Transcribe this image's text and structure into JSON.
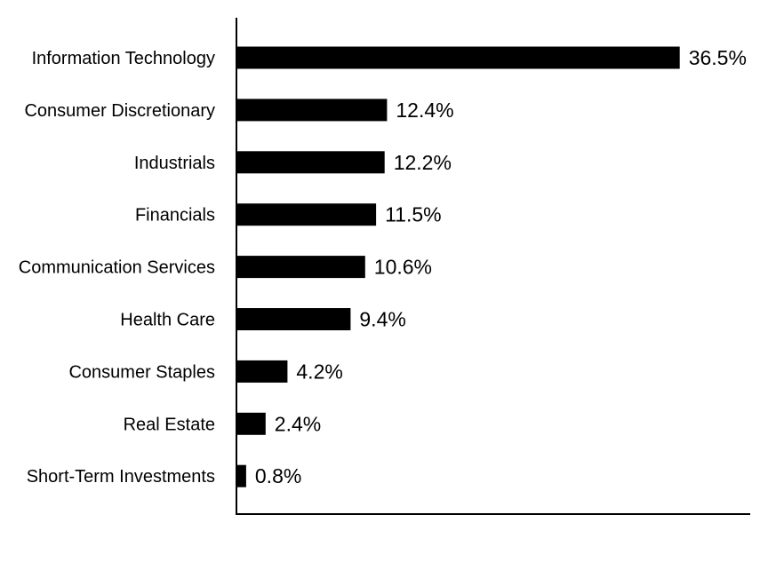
{
  "chart_data": {
    "type": "bar",
    "orientation": "horizontal",
    "categories": [
      "Information Technology",
      "Consumer Discretionary",
      "Industrials",
      "Financials",
      "Communication Services",
      "Health Care",
      "Consumer Staples",
      "Real Estate",
      "Short-Term Investments"
    ],
    "values": [
      36.5,
      12.4,
      12.2,
      11.5,
      10.6,
      9.4,
      4.2,
      2.4,
      0.8
    ],
    "value_labels": [
      "36.5%",
      "12.4%",
      "12.2%",
      "11.5%",
      "10.6%",
      "9.4%",
      "4.2%",
      "2.4%",
      "0.8%"
    ],
    "title": "",
    "xlabel": "",
    "ylabel": "",
    "xlim": [
      0,
      42.3
    ],
    "grid": false,
    "legend": "none",
    "bar_color": "#000000"
  }
}
